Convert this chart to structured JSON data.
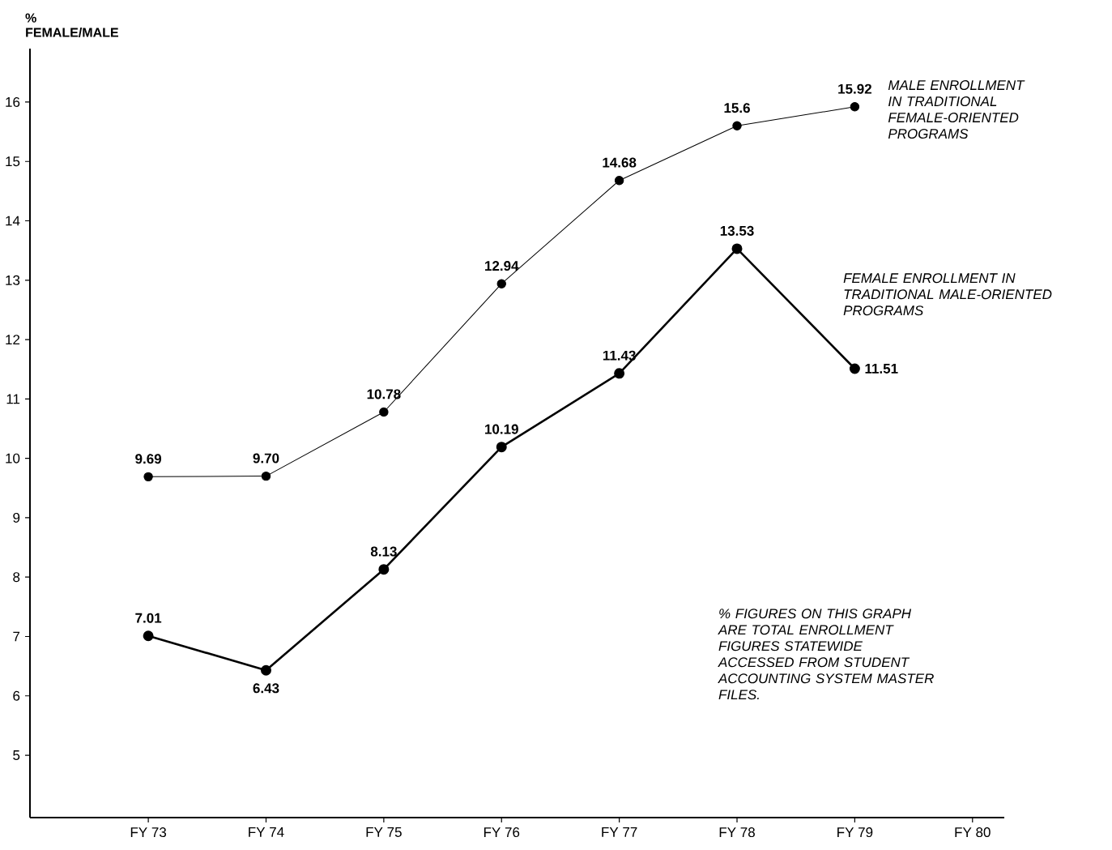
{
  "chart_data": {
    "type": "line",
    "ylabel": "% FEMALE/MALE",
    "categories": [
      "FY 73",
      "FY 74",
      "FY 75",
      "FY 76",
      "FY 77",
      "FY 78",
      "FY 79",
      "FY 80"
    ],
    "series": [
      {
        "name": "MALE ENROLLMENT IN TRADITIONAL FEMALE-ORIENTED PROGRAMS",
        "color": "#000000",
        "values": [
          9.69,
          9.7,
          10.78,
          12.94,
          14.68,
          15.6,
          15.92,
          null
        ],
        "value_labels": [
          "9.69",
          "9.70",
          "10.78",
          "12.94",
          "14.68",
          "15.6",
          "15.92",
          null
        ]
      },
      {
        "name": "FEMALE ENROLLMENT IN TRADITIONAL MALE-ORIENTED PROGRAMS",
        "color": "#000000",
        "values": [
          7.01,
          6.43,
          8.13,
          10.19,
          11.43,
          13.53,
          11.51,
          null
        ],
        "value_labels": [
          "7.01",
          "6.43",
          "8.13",
          "10.19",
          "11.43",
          "13.53",
          "11.51",
          null
        ]
      }
    ],
    "ylim": [
      3.95,
      16.9
    ],
    "yticks": [
      5,
      6,
      7,
      8,
      9,
      10,
      11,
      12,
      13,
      14,
      15,
      16
    ],
    "marker": "circle",
    "line_style": "solid",
    "grid": false,
    "legend": false,
    "annotations": [
      "% FIGURES ON THIS GRAPH ARE TOTAL ENROLLMENT FIGURES STATEWIDE ACCESSED FROM STUDENT ACCOUNTING SYSTEM MASTER FILES."
    ]
  }
}
